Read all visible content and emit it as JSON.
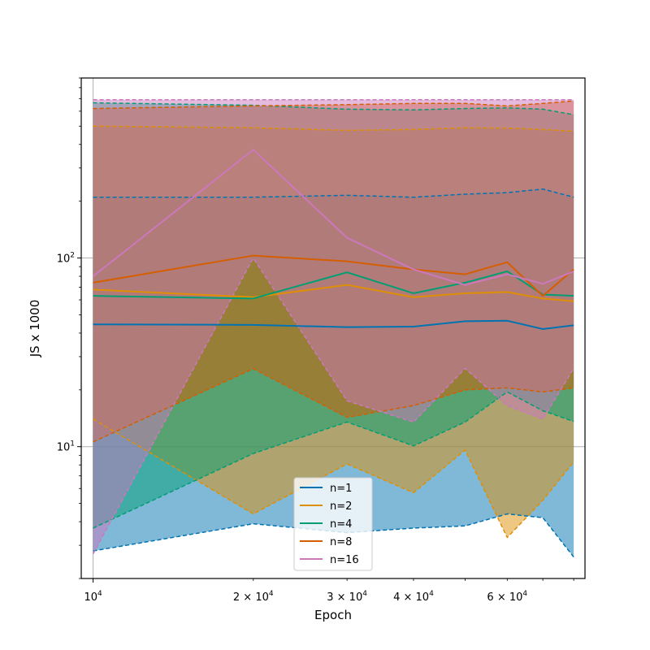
{
  "chart_data": {
    "type": "line",
    "xlabel": "Epoch",
    "ylabel": "JS x 1000",
    "x_scale": "log",
    "y_scale": "log",
    "xlim": [
      9500,
      84000
    ],
    "ylim": [
      2.0,
      900
    ],
    "grid": true,
    "legend_position": "lower-center",
    "x_ticks": [
      {
        "value": 10000,
        "base": "10",
        "exp": "4",
        "mult": ""
      },
      {
        "value": 20000,
        "base": "10",
        "exp": "4",
        "mult": "2 × "
      },
      {
        "value": 30000,
        "base": "10",
        "exp": "4",
        "mult": "3 × "
      },
      {
        "value": 40000,
        "base": "10",
        "exp": "4",
        "mult": "4 × "
      },
      {
        "value": 60000,
        "base": "10",
        "exp": "4",
        "mult": "6 × "
      }
    ],
    "y_ticks": [
      {
        "value": 10,
        "base": "10",
        "exp": "1"
      },
      {
        "value": 100,
        "base": "10",
        "exp": "2"
      }
    ],
    "x": [
      10000,
      20000,
      30000,
      40000,
      50000,
      60000,
      70000,
      80000
    ],
    "series": [
      {
        "name": "n=1",
        "color": "#0173b2",
        "mean": [
          44.5,
          44.2,
          43.0,
          43.3,
          46.2,
          46.5,
          42.0,
          44.0
        ],
        "lower": [
          2.8,
          3.9,
          3.5,
          3.7,
          3.8,
          4.4,
          4.2,
          2.6
        ],
        "upper": [
          210,
          210,
          215,
          210,
          218,
          222,
          232,
          210
        ]
      },
      {
        "name": "n=2",
        "color": "#de8f05",
        "mean": [
          68,
          62,
          72,
          62,
          65,
          66,
          61,
          59
        ],
        "lower": [
          14.0,
          4.4,
          8.1,
          5.7,
          9.6,
          3.3,
          5.2,
          8.3
        ],
        "upper": [
          500,
          490,
          475,
          480,
          490,
          488,
          480,
          470
        ]
      },
      {
        "name": "n=4",
        "color": "#029e73",
        "mean": [
          63,
          61,
          84,
          65,
          74,
          85,
          64,
          63
        ],
        "lower": [
          3.7,
          9.2,
          13.5,
          10.1,
          13.5,
          19.5,
          15.5,
          13.6
        ],
        "upper": [
          665,
          645,
          615,
          610,
          620,
          625,
          615,
          575
        ]
      },
      {
        "name": "n=8",
        "color": "#d55e00",
        "mean": [
          74,
          103,
          96,
          87,
          82,
          95,
          63,
          87
        ],
        "lower": [
          10.6,
          25.9,
          14.3,
          16.5,
          20.0,
          20.5,
          19.5,
          20.5
        ],
        "upper": [
          620,
          640,
          650,
          660,
          660,
          640,
          660,
          680
        ]
      },
      {
        "name": "n=16",
        "color": "#cc78bc",
        "mean": [
          80,
          375,
          128,
          87,
          72,
          82,
          73,
          85
        ],
        "lower": [
          2.7,
          100,
          17.5,
          13.5,
          26.0,
          16.5,
          14.0,
          26.0
        ],
        "upper": [
          690,
          690,
          690,
          690,
          690,
          690,
          690,
          690
        ]
      }
    ]
  }
}
